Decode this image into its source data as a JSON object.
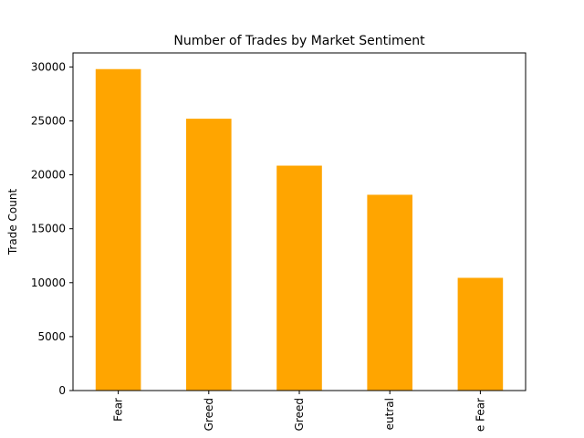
{
  "chart_data": {
    "type": "bar",
    "title": "Number of Trades by Market Sentiment",
    "xlabel": "",
    "ylabel": "Trade Count",
    "categories": [
      "Fear",
      "Greed",
      "Greed",
      "eutral",
      "e Fear"
    ],
    "values": [
      29800,
      25200,
      20850,
      18150,
      10450
    ],
    "ylim": [
      0,
      31300
    ],
    "yticks": [
      0,
      5000,
      10000,
      15000,
      20000,
      25000,
      30000
    ],
    "xtick_rotation": "vertical",
    "grid": false,
    "legend": "none"
  },
  "colors": {
    "bar": "#ffa500",
    "axes": "#000000",
    "background": "#ffffff"
  }
}
